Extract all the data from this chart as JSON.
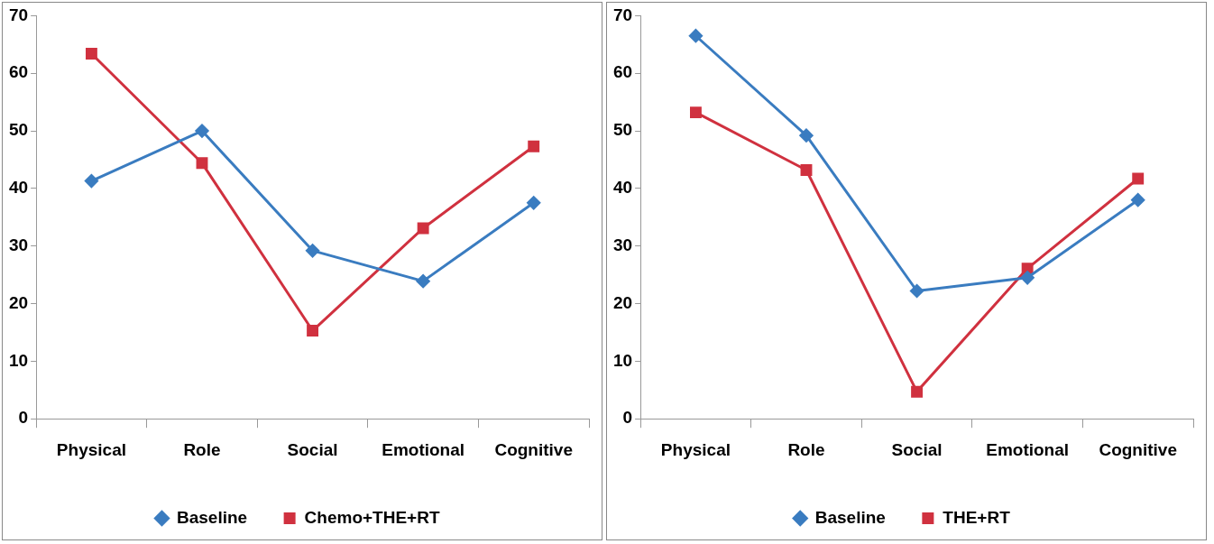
{
  "chart_data": [
    {
      "type": "line",
      "categories": [
        "Physical",
        "Role",
        "Social",
        "Emotional",
        "Cognitive"
      ],
      "ylim": [
        0,
        70
      ],
      "yticks": [
        0,
        10,
        20,
        30,
        40,
        50,
        60,
        70
      ],
      "grid": false,
      "legend": "bottom",
      "series": [
        {
          "name": "Baseline",
          "color": "#3a7cc0",
          "marker": "diamond",
          "values": [
            41.3,
            50.0,
            29.2,
            23.9,
            37.5
          ]
        },
        {
          "name": "Chemo+THE+RT",
          "color": "#d0313f",
          "marker": "square",
          "values": [
            63.4,
            44.4,
            15.3,
            33.1,
            47.3
          ]
        }
      ]
    },
    {
      "type": "line",
      "categories": [
        "Physical",
        "Role",
        "Social",
        "Emotional",
        "Cognitive"
      ],
      "ylim": [
        0,
        70
      ],
      "yticks": [
        0,
        10,
        20,
        30,
        40,
        50,
        60,
        70
      ],
      "grid": false,
      "legend": "bottom",
      "series": [
        {
          "name": "Baseline",
          "color": "#3a7cc0",
          "marker": "diamond",
          "values": [
            66.5,
            49.2,
            22.2,
            24.5,
            38.0
          ]
        },
        {
          "name": "THE+RT",
          "color": "#d0313f",
          "marker": "square",
          "values": [
            53.2,
            43.2,
            4.7,
            26.1,
            41.7
          ]
        }
      ]
    }
  ]
}
